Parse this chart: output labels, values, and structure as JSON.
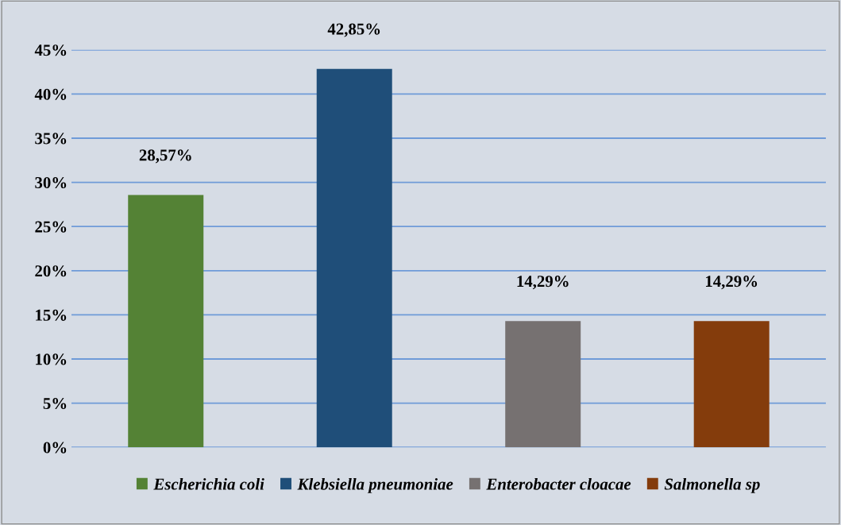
{
  "chart_data": {
    "type": "bar",
    "categories": [
      null,
      null,
      null,
      null
    ],
    "series": [
      {
        "name": "Escherichia coli",
        "color": "#548235",
        "values": [
          28.57,
          null,
          null,
          null
        ],
        "value_labels": [
          "28,57%",
          null,
          null,
          null
        ]
      },
      {
        "name": "Klebsiella pneumoniae",
        "color": "#1f4e79",
        "values": [
          null,
          42.85,
          null,
          null
        ],
        "value_labels": [
          null,
          "42,85%",
          null,
          null
        ]
      },
      {
        "name": "Enterobacter cloacae",
        "color": "#767171",
        "values": [
          null,
          null,
          14.29,
          null
        ],
        "value_labels": [
          null,
          null,
          "14,29%",
          null
        ]
      },
      {
        "name": "Salmonella sp",
        "color": "#843c0c",
        "values": [
          null,
          null,
          null,
          14.29
        ],
        "value_labels": [
          null,
          null,
          null,
          "14,29%"
        ]
      }
    ],
    "ylim": [
      0,
      45
    ],
    "yticks": [
      {
        "value": 0,
        "label": "0%"
      },
      {
        "value": 5,
        "label": "5%"
      },
      {
        "value": 10,
        "label": "10%"
      },
      {
        "value": 15,
        "label": "15%"
      },
      {
        "value": 20,
        "label": "20%"
      },
      {
        "value": 25,
        "label": "25%"
      },
      {
        "value": 30,
        "label": "30%"
      },
      {
        "value": 35,
        "label": "35%"
      },
      {
        "value": 40,
        "label": "40%"
      },
      {
        "value": 45,
        "label": "45%"
      }
    ],
    "grid": "y",
    "legend": "bottom"
  }
}
